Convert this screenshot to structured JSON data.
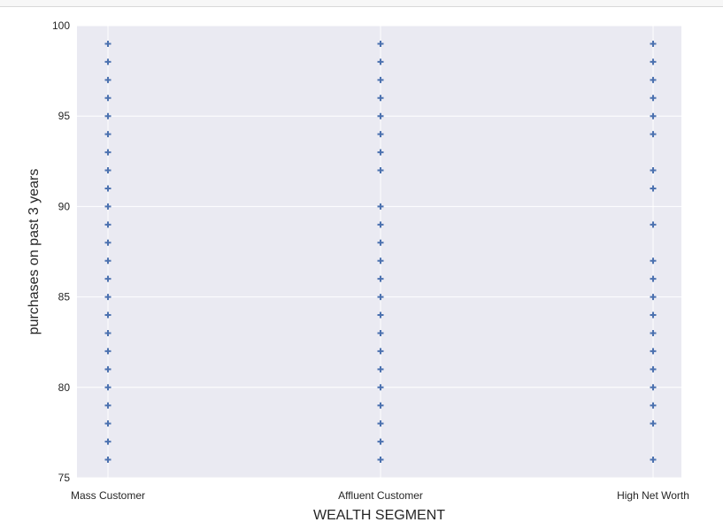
{
  "chart_data": {
    "type": "scatter",
    "title": "",
    "xlabel": "WEALTH SEGMENT",
    "ylabel": "purchases on past 3 years",
    "categories": [
      "Mass Customer",
      "Affluent Customer",
      "High Net Worth"
    ],
    "ylim": [
      75,
      100
    ],
    "yticks": [
      75,
      80,
      85,
      90,
      95,
      100
    ],
    "grid": true,
    "marker": "plus",
    "colors": {
      "marker": "#4c72b0",
      "plot_bg": "#eaeaf2",
      "grid": "#ffffff"
    },
    "series": [
      {
        "category": "Mass Customer",
        "values": [
          76,
          77,
          78,
          79,
          80,
          81,
          82,
          83,
          84,
          85,
          86,
          87,
          88,
          89,
          90,
          91,
          92,
          93,
          94,
          95,
          96,
          97,
          98,
          99
        ]
      },
      {
        "category": "Affluent Customer",
        "values": [
          76,
          77,
          78,
          79,
          80,
          81,
          82,
          83,
          84,
          85,
          86,
          87,
          88,
          89,
          90,
          92,
          93,
          94,
          95,
          96,
          97,
          98,
          99
        ]
      },
      {
        "category": "High Net Worth",
        "values": [
          76,
          78,
          79,
          80,
          81,
          82,
          83,
          84,
          85,
          86,
          87,
          89,
          91,
          92,
          94,
          95,
          96,
          97,
          98,
          99
        ]
      }
    ]
  }
}
